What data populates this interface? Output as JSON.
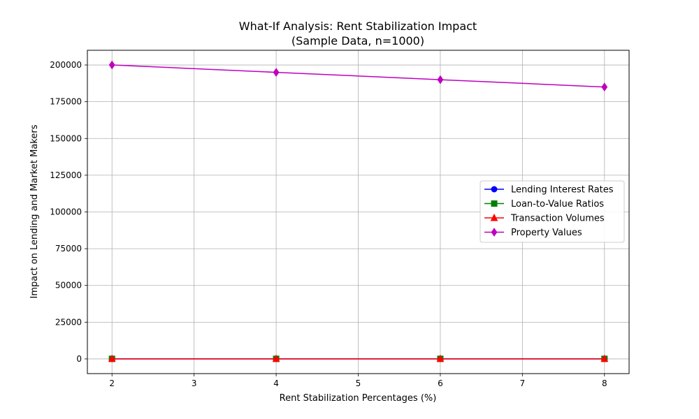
{
  "chart_data": {
    "type": "line",
    "title_line1": "What-If Analysis: Rent Stabilization Impact",
    "title_line2": "(Sample Data, n=1000)",
    "xlabel": "Rent Stabilization Percentages (%)",
    "ylabel": "Impact on Lending and Market Makers",
    "x": [
      2,
      4,
      6,
      8
    ],
    "xlim": [
      1.7,
      8.3
    ],
    "ylim": [
      -10000,
      210000
    ],
    "xticks": [
      2,
      3,
      4,
      5,
      6,
      7,
      8
    ],
    "yticks": [
      0,
      25000,
      50000,
      75000,
      100000,
      125000,
      150000,
      175000,
      200000
    ],
    "xtick_labels": [
      "2",
      "3",
      "4",
      "5",
      "6",
      "7",
      "8"
    ],
    "ytick_labels": [
      "0",
      "25000",
      "50000",
      "75000",
      "100000",
      "125000",
      "150000",
      "175000",
      "200000"
    ],
    "grid": true,
    "legend_position": "center-right",
    "series": [
      {
        "name": "Lending Interest Rates",
        "values": [
          4.5,
          4.3,
          4.1,
          3.9
        ],
        "color": "#0000ff",
        "marker": "circle"
      },
      {
        "name": "Loan-to-Value Ratios",
        "values": [
          75,
          73,
          71,
          69
        ],
        "color": "#008000",
        "marker": "square"
      },
      {
        "name": "Transaction Volumes",
        "values": [
          120,
          115,
          110,
          105
        ],
        "color": "#ff0000",
        "marker": "triangle"
      },
      {
        "name": "Property Values",
        "values": [
          200000,
          195000,
          190000,
          185000
        ],
        "color": "#bf00bf",
        "marker": "diamond"
      }
    ]
  }
}
